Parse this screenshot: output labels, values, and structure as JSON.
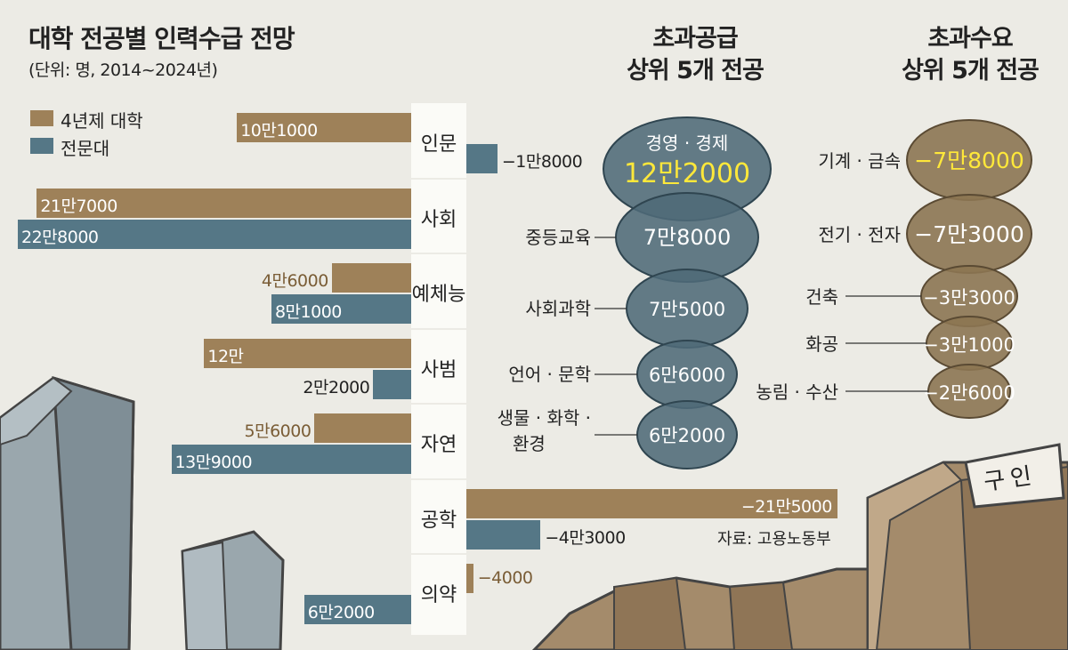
{
  "title": "대학 전공별 인력수급 전망",
  "unit": "(단위: 명, 2014~2024년)",
  "colors": {
    "univ4": "#9e8159",
    "college": "#557786",
    "bubble_supply": "#4e6a77",
    "bubble_demand": "#8c7552",
    "highlight": "#ffe83a",
    "bar_label_univ": "#7a5d36"
  },
  "legend": [
    {
      "label": "4년제 대학",
      "color": "#9e8159"
    },
    {
      "label": "전문대",
      "color": "#557786"
    }
  ],
  "chart_data": [
    {
      "type": "bar",
      "title": "대학 전공별 인력수급 전망",
      "unit": "(단위: 명, 2014~2024년)",
      "categories": [
        "인문",
        "사회",
        "예체능",
        "사범",
        "자연",
        "공학",
        "의약"
      ],
      "series": [
        {
          "name": "4년제 대학",
          "values": [
            101000,
            217000,
            46000,
            120000,
            56000,
            -215000,
            -4000
          ],
          "labels": [
            "10만1000",
            "21만7000",
            "4만6000",
            "12만",
            "5만6000",
            "−21만5000",
            "−4000"
          ]
        },
        {
          "name": "전문대",
          "values": [
            -18000,
            228000,
            81000,
            22000,
            139000,
            -43000,
            62000
          ],
          "labels": [
            "−1만8000",
            "22만8000",
            "8만1000",
            "2만2000",
            "13만9000",
            "−4만3000",
            "6만2000"
          ]
        }
      ]
    },
    {
      "type": "bubble",
      "title": "초과공급 상위 5개 전공",
      "categories": [
        "경영 · 경제",
        "중등교육",
        "사회과학",
        "언어 · 문학",
        "생물 · 화학 · 환경"
      ],
      "values": [
        122000,
        78000,
        75000,
        66000,
        62000
      ],
      "labels": [
        "12만2000",
        "7만8000",
        "7만5000",
        "6만6000",
        "6만2000"
      ]
    },
    {
      "type": "bubble",
      "title": "초과수요 상위 5개 전공",
      "categories": [
        "기계 · 금속",
        "전기 · 전자",
        "건축",
        "화공",
        "농림 · 수산"
      ],
      "values": [
        -78000,
        -73000,
        -33000,
        -31000,
        -26000
      ],
      "labels": [
        "−7만8000",
        "−7만3000",
        "−3만3000",
        "−3만1000",
        "−2만6000"
      ]
    }
  ],
  "supply_title_lines": [
    "초과공급",
    "상위 5개 전공"
  ],
  "demand_title_lines": [
    "초과수요",
    "상위 5개 전공"
  ],
  "source": "자료: 고용노동부",
  "sign_text": "구인"
}
